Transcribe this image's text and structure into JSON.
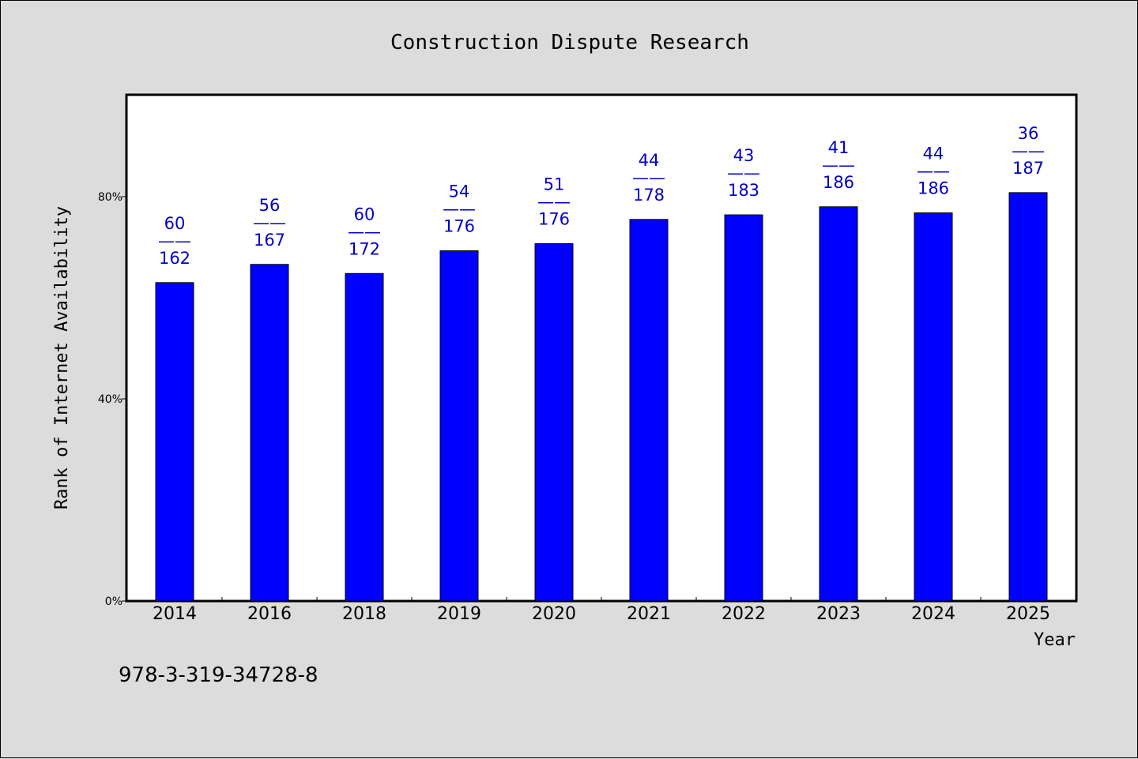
{
  "chart_data": {
    "type": "bar",
    "title": "Construction Dispute Research",
    "xlabel": "Year",
    "ylabel": "Rank of Internet Availability",
    "footer_text": "978-3-319-34728-8",
    "ylim": [
      0,
      100
    ],
    "yticks": [
      {
        "value": 0,
        "label": "0%"
      },
      {
        "value": 40,
        "label": "40%"
      },
      {
        "value": 80,
        "label": "80%"
      }
    ],
    "categories": [
      "2014",
      "2016",
      "2018",
      "2019",
      "2020",
      "2021",
      "2022",
      "2023",
      "2024",
      "2025"
    ],
    "values": [
      63.0,
      66.6,
      64.8,
      69.3,
      70.7,
      75.5,
      76.4,
      78.0,
      76.8,
      80.8
    ],
    "labels": [
      {
        "top": "60",
        "sep": "——",
        "bottom": "162"
      },
      {
        "top": "56",
        "sep": "——",
        "bottom": "167"
      },
      {
        "top": "60",
        "sep": "——",
        "bottom": "172"
      },
      {
        "top": "54",
        "sep": "——",
        "bottom": "176"
      },
      {
        "top": "51",
        "sep": "——",
        "bottom": "176"
      },
      {
        "top": "44",
        "sep": "——",
        "bottom": "178"
      },
      {
        "top": "43",
        "sep": "——",
        "bottom": "183"
      },
      {
        "top": "41",
        "sep": "——",
        "bottom": "186"
      },
      {
        "top": "44",
        "sep": "——",
        "bottom": "186"
      },
      {
        "top": "36",
        "sep": "——",
        "bottom": "187"
      }
    ],
    "grid": false,
    "legend": "none",
    "colors": {
      "bar": "#0000ff",
      "label": "#0000c8",
      "axis": "#000000",
      "plot_bg": "#ffffff",
      "page_bg": "#dcdcdc"
    }
  }
}
